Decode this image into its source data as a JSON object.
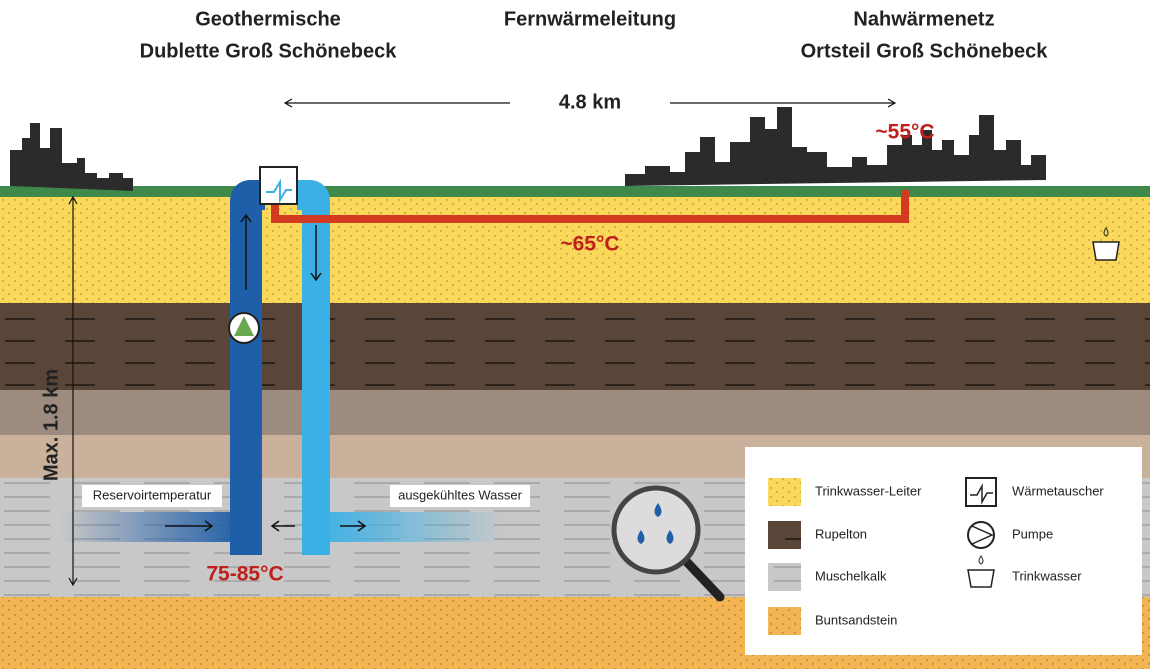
{
  "header": {
    "left": [
      "Geothermische",
      "Dublette Groß Schönebeck"
    ],
    "center": "Fernwärmeleitung",
    "right": [
      "Nahwärmenetz",
      "Ortsteil Groß Schönebeck"
    ]
  },
  "labels": {
    "distance": "4.8 km",
    "temp_network": "~55°C",
    "temp_pipe": "~65°C",
    "temp_reservoir": "75-85°C",
    "depth": "Max. 1.8 km",
    "reservoir": "Reservoirtemperatur",
    "cooled": "ausgekühltes Wasser"
  },
  "legend": {
    "layers": [
      "Trinkwasser-Leiter",
      "Rupelton",
      "Muschelkalk",
      "Buntsandstein"
    ],
    "symbols": [
      "Wärmetauscher",
      "Pumpe",
      "Trinkwasser"
    ]
  }
}
